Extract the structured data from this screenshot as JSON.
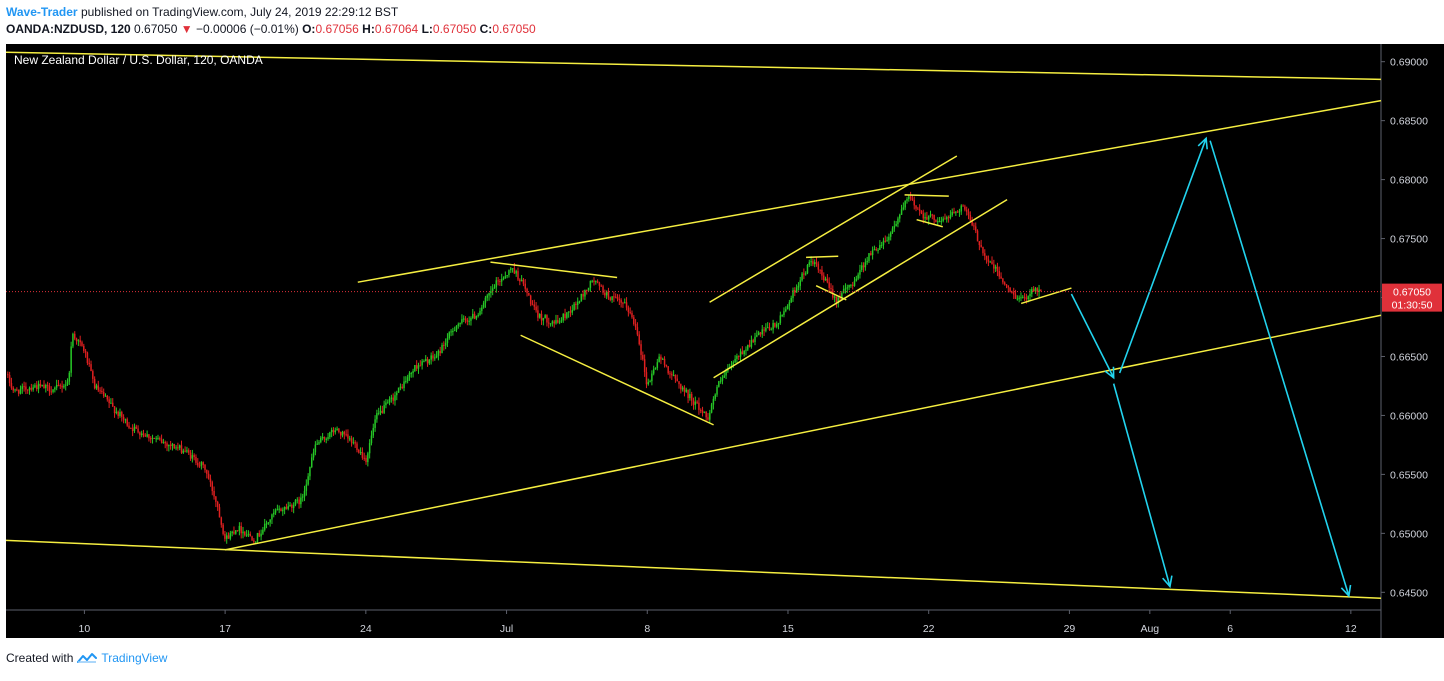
{
  "header": {
    "author": "Wave-Trader",
    "published": "published on TradingView.com, July 24, 2019 22:29:12 BST",
    "symbol": "OANDA:NZDUSD, 120",
    "last": "0.67050",
    "arrow": "▼",
    "change": "−0.00006 (−0.01%)",
    "o_label": "O:",
    "o_value": "0.67056",
    "h_label": "H:",
    "h_value": "0.67064",
    "l_label": "L:",
    "l_value": "0.67050",
    "c_label": "C:",
    "c_value": "0.67050"
  },
  "footer": {
    "created_with": "Created with",
    "brand": "TradingView",
    "icon": "tradingview-logo-icon"
  },
  "chart_data": {
    "type": "candlestick",
    "title": "New Zealand Dollar / U.S. Dollar, 120, OANDA",
    "ylim": [
      0.6435,
      0.6915
    ],
    "y_ticks": [
      "0.69000",
      "0.68500",
      "0.68000",
      "0.67500",
      "0.67000",
      "0.66500",
      "0.66000",
      "0.65500",
      "0.65000",
      "0.64500"
    ],
    "x_ticks": [
      {
        "label": "10",
        "x": 7
      },
      {
        "label": "17",
        "x": 14
      },
      {
        "label": "24",
        "x": 21
      },
      {
        "label": "Jul",
        "x": 28
      },
      {
        "label": "8",
        "x": 35
      },
      {
        "label": "15",
        "x": 42
      },
      {
        "label": "22",
        "x": 49
      },
      {
        "label": "29",
        "x": 56
      },
      {
        "label": "Aug",
        "x": 60
      },
      {
        "label": "6",
        "x": 64
      },
      {
        "label": "12",
        "x": 70
      }
    ],
    "x_range": [
      3.1,
      71.5
    ],
    "last_price": {
      "value": 0.6705,
      "label": "0.67050",
      "countdown": "01:30:50"
    },
    "path_knots": [
      [
        3.1,
        0.6635
      ],
      [
        3.5,
        0.662
      ],
      [
        4.5,
        0.6625
      ],
      [
        5.5,
        0.6622
      ],
      [
        6.2,
        0.6628
      ],
      [
        6.4,
        0.667
      ],
      [
        7.0,
        0.6655
      ],
      [
        7.5,
        0.6625
      ],
      [
        8.5,
        0.6605
      ],
      [
        9.3,
        0.659
      ],
      [
        10.5,
        0.658
      ],
      [
        12.0,
        0.657
      ],
      [
        13.0,
        0.6555
      ],
      [
        13.6,
        0.6525
      ],
      [
        14.0,
        0.6495
      ],
      [
        14.6,
        0.6505
      ],
      [
        15.5,
        0.6495
      ],
      [
        16.5,
        0.6518
      ],
      [
        17.8,
        0.6528
      ],
      [
        18.5,
        0.6575
      ],
      [
        19.5,
        0.6588
      ],
      [
        20.5,
        0.6575
      ],
      [
        21.0,
        0.6562
      ],
      [
        21.5,
        0.6598
      ],
      [
        22.5,
        0.6618
      ],
      [
        23.5,
        0.6642
      ],
      [
        24.5,
        0.665
      ],
      [
        25.5,
        0.6677
      ],
      [
        26.5,
        0.6685
      ],
      [
        27.5,
        0.6712
      ],
      [
        28.3,
        0.6725
      ],
      [
        28.8,
        0.6712
      ],
      [
        29.5,
        0.6685
      ],
      [
        30.5,
        0.6678
      ],
      [
        31.5,
        0.6695
      ],
      [
        32.3,
        0.6715
      ],
      [
        33.0,
        0.6702
      ],
      [
        34.0,
        0.6692
      ],
      [
        34.5,
        0.6672
      ],
      [
        35.0,
        0.6625
      ],
      [
        35.6,
        0.665
      ],
      [
        36.3,
        0.6632
      ],
      [
        37.3,
        0.6612
      ],
      [
        38.0,
        0.6598
      ],
      [
        38.5,
        0.6625
      ],
      [
        39.5,
        0.665
      ],
      [
        40.5,
        0.6668
      ],
      [
        41.5,
        0.6678
      ],
      [
        42.5,
        0.6712
      ],
      [
        43.2,
        0.6732
      ],
      [
        43.7,
        0.6718
      ],
      [
        44.4,
        0.6698
      ],
      [
        45.2,
        0.6712
      ],
      [
        46.0,
        0.6735
      ],
      [
        47.0,
        0.6752
      ],
      [
        47.5,
        0.6768
      ],
      [
        48.0,
        0.6785
      ],
      [
        48.7,
        0.677
      ],
      [
        49.7,
        0.6765
      ],
      [
        50.7,
        0.6778
      ],
      [
        51.2,
        0.676
      ],
      [
        51.8,
        0.6735
      ],
      [
        52.4,
        0.6722
      ],
      [
        53.0,
        0.6705
      ],
      [
        53.7,
        0.6698
      ],
      [
        54.2,
        0.6708
      ],
      [
        54.6,
        0.6705
      ]
    ],
    "overlay_lines": [
      {
        "id": "upper-channel-top",
        "x1": 3.1,
        "y1": 0.6908,
        "x2": 71.5,
        "y2": 0.6885
      },
      {
        "id": "rising-upper-line",
        "x1": 20.6,
        "y1": 0.6713,
        "x2": 71.5,
        "y2": 0.6867
      },
      {
        "id": "rising-support-line",
        "x1": 14.0,
        "y1": 0.6486,
        "x2": 71.5,
        "y2": 0.6685
      },
      {
        "id": "lower-channel-bottom",
        "x1": 3.1,
        "y1": 0.6494,
        "x2": 71.5,
        "y2": 0.6445
      },
      {
        "id": "wedge1-top",
        "x1": 27.2,
        "y1": 0.673,
        "x2": 33.5,
        "y2": 0.6717
      },
      {
        "id": "wedge1-bottom",
        "x1": 28.7,
        "y1": 0.6668,
        "x2": 38.3,
        "y2": 0.6592
      },
      {
        "id": "channel2-top",
        "x1": 38.1,
        "y1": 0.6696,
        "x2": 50.4,
        "y2": 0.682
      },
      {
        "id": "channel2-bottom",
        "x1": 38.3,
        "y1": 0.6632,
        "x2": 52.9,
        "y2": 0.6783
      },
      {
        "id": "flag1-top",
        "x1": 42.9,
        "y1": 0.6734,
        "x2": 44.5,
        "y2": 0.6735
      },
      {
        "id": "flag1-bottom",
        "x1": 43.4,
        "y1": 0.671,
        "x2": 44.9,
        "y2": 0.6698
      },
      {
        "id": "flag2-top",
        "x1": 47.8,
        "y1": 0.6787,
        "x2": 50.0,
        "y2": 0.6786
      },
      {
        "id": "flag2-bottom",
        "x1": 48.4,
        "y1": 0.6766,
        "x2": 49.7,
        "y2": 0.676
      },
      {
        "id": "current-pennant",
        "x1": 53.6,
        "y1": 0.6695,
        "x2": 56.1,
        "y2": 0.6708
      }
    ],
    "projection_arrows": [
      {
        "id": "proj-down-1",
        "x1": 56.1,
        "y1": 0.6703,
        "x2": 58.2,
        "y2": 0.6632
      },
      {
        "id": "proj-up",
        "x1": 58.5,
        "y1": 0.6636,
        "x2": 62.8,
        "y2": 0.6835
      },
      {
        "id": "proj-down-2",
        "x1": 63.0,
        "y1": 0.6833,
        "x2": 69.9,
        "y2": 0.6447
      },
      {
        "id": "proj-down-3",
        "x1": 58.2,
        "y1": 0.6627,
        "x2": 61.0,
        "y2": 0.6455
      }
    ],
    "colors": {
      "background": "#000000",
      "up": "#26c826",
      "down": "#e02020",
      "overlay": "#f5ee41",
      "projection": "#22d3ee",
      "price_line": "#e0313a",
      "axis_text": "#d1d4dc"
    }
  }
}
